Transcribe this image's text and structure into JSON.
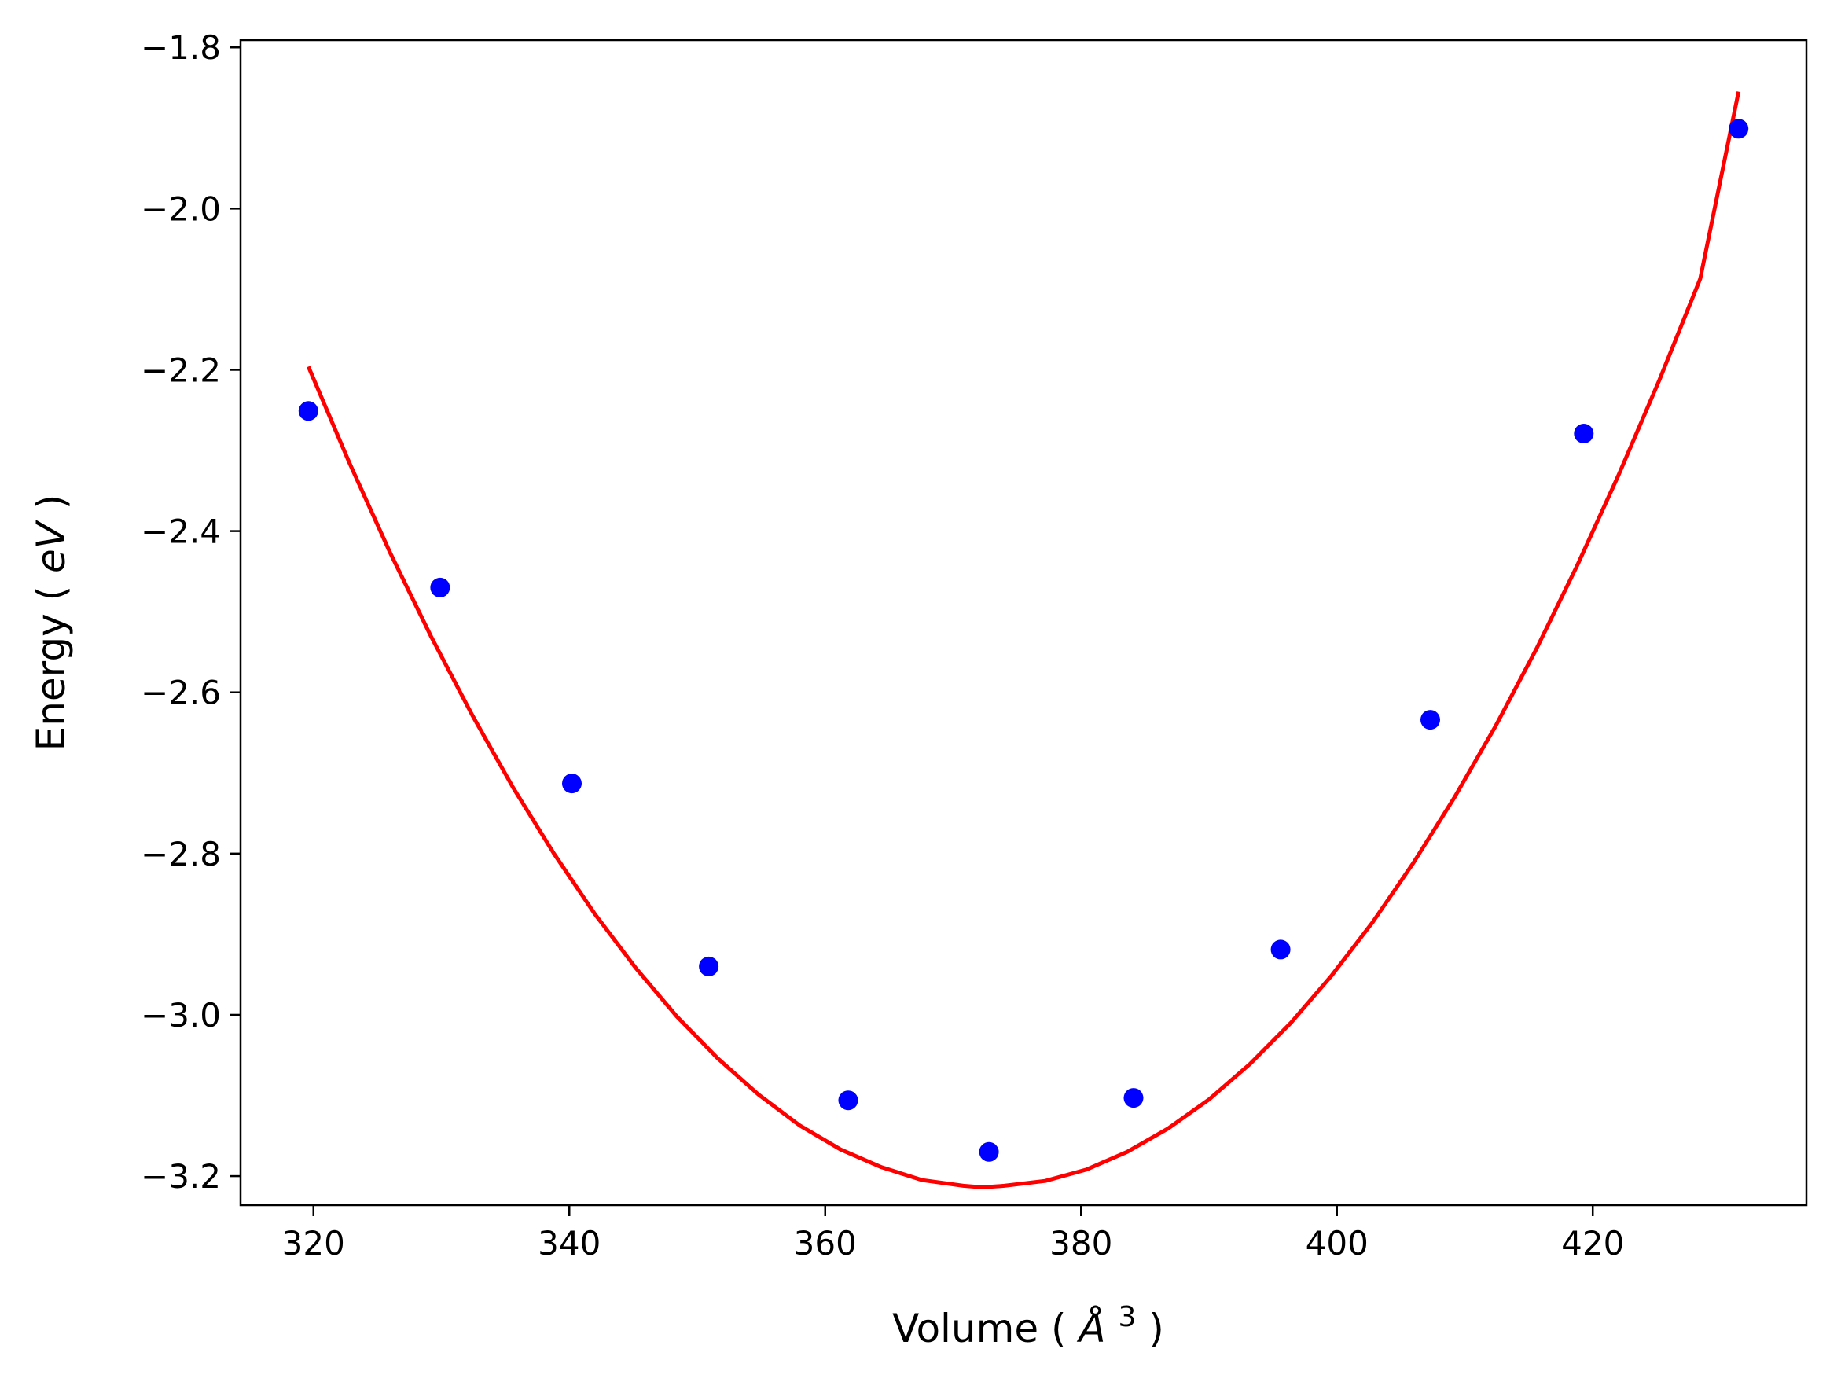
{
  "chart_data": {
    "type": "scatter",
    "title": "",
    "xlabel": "Volume",
    "xlabel_unit_symbol": "Å",
    "xlabel_unit_power": "3",
    "ylabel": "Energy",
    "ylabel_unit": "eV",
    "xlim": [
      314.3,
      436.7
    ],
    "ylim": [
      -3.236,
      -1.791
    ],
    "x_ticks": [
      320,
      340,
      360,
      380,
      400,
      420
    ],
    "x_tick_labels": [
      "320",
      "340",
      "360",
      "380",
      "400",
      "420"
    ],
    "y_ticks": [
      -1.8,
      -2.0,
      -2.2,
      -2.4,
      -2.6,
      -2.8,
      -3.0,
      -3.2
    ],
    "y_tick_labels": [
      "−1.8",
      "−2.0",
      "−2.2",
      "−2.4",
      "−2.6",
      "−2.8",
      "−3.0",
      "−3.2"
    ],
    "grid": false,
    "series": [
      {
        "kind": "points",
        "color": "#0000ff",
        "x": [
          319.6,
          329.9,
          340.2,
          350.9,
          361.8,
          372.8,
          384.1,
          395.6,
          407.3,
          419.3,
          431.4
        ],
        "y": [
          -2.251,
          -2.47,
          -2.713,
          -2.94,
          -3.106,
          -3.17,
          -3.103,
          -2.919,
          -2.634,
          -2.279,
          -1.901
        ]
      },
      {
        "kind": "line",
        "color": "#ff0000",
        "x": [
          319.6,
          322.8,
          326.0,
          329.2,
          332.4,
          335.6,
          338.8,
          342.0,
          345.2,
          348.4,
          351.6,
          354.8,
          358.0,
          361.2,
          364.4,
          367.6,
          370.8,
          372.3,
          374.0,
          377.2,
          380.4,
          383.6,
          386.8,
          390.0,
          393.2,
          396.4,
          399.6,
          402.8,
          406.0,
          409.2,
          412.4,
          415.6,
          418.8,
          422.0,
          425.2,
          428.4,
          431.4
        ],
        "y": [
          -2.196,
          -2.315,
          -2.427,
          -2.531,
          -2.628,
          -2.718,
          -2.8,
          -2.875,
          -2.942,
          -3.002,
          -3.054,
          -3.099,
          -3.137,
          -3.167,
          -3.189,
          -3.205,
          -3.212,
          -3.214,
          -3.212,
          -3.206,
          -3.192,
          -3.17,
          -3.141,
          -3.105,
          -3.061,
          -3.01,
          -2.951,
          -2.885,
          -2.811,
          -2.73,
          -2.642,
          -2.546,
          -2.442,
          -2.331,
          -2.213,
          -2.087,
          -1.855
        ]
      }
    ]
  }
}
